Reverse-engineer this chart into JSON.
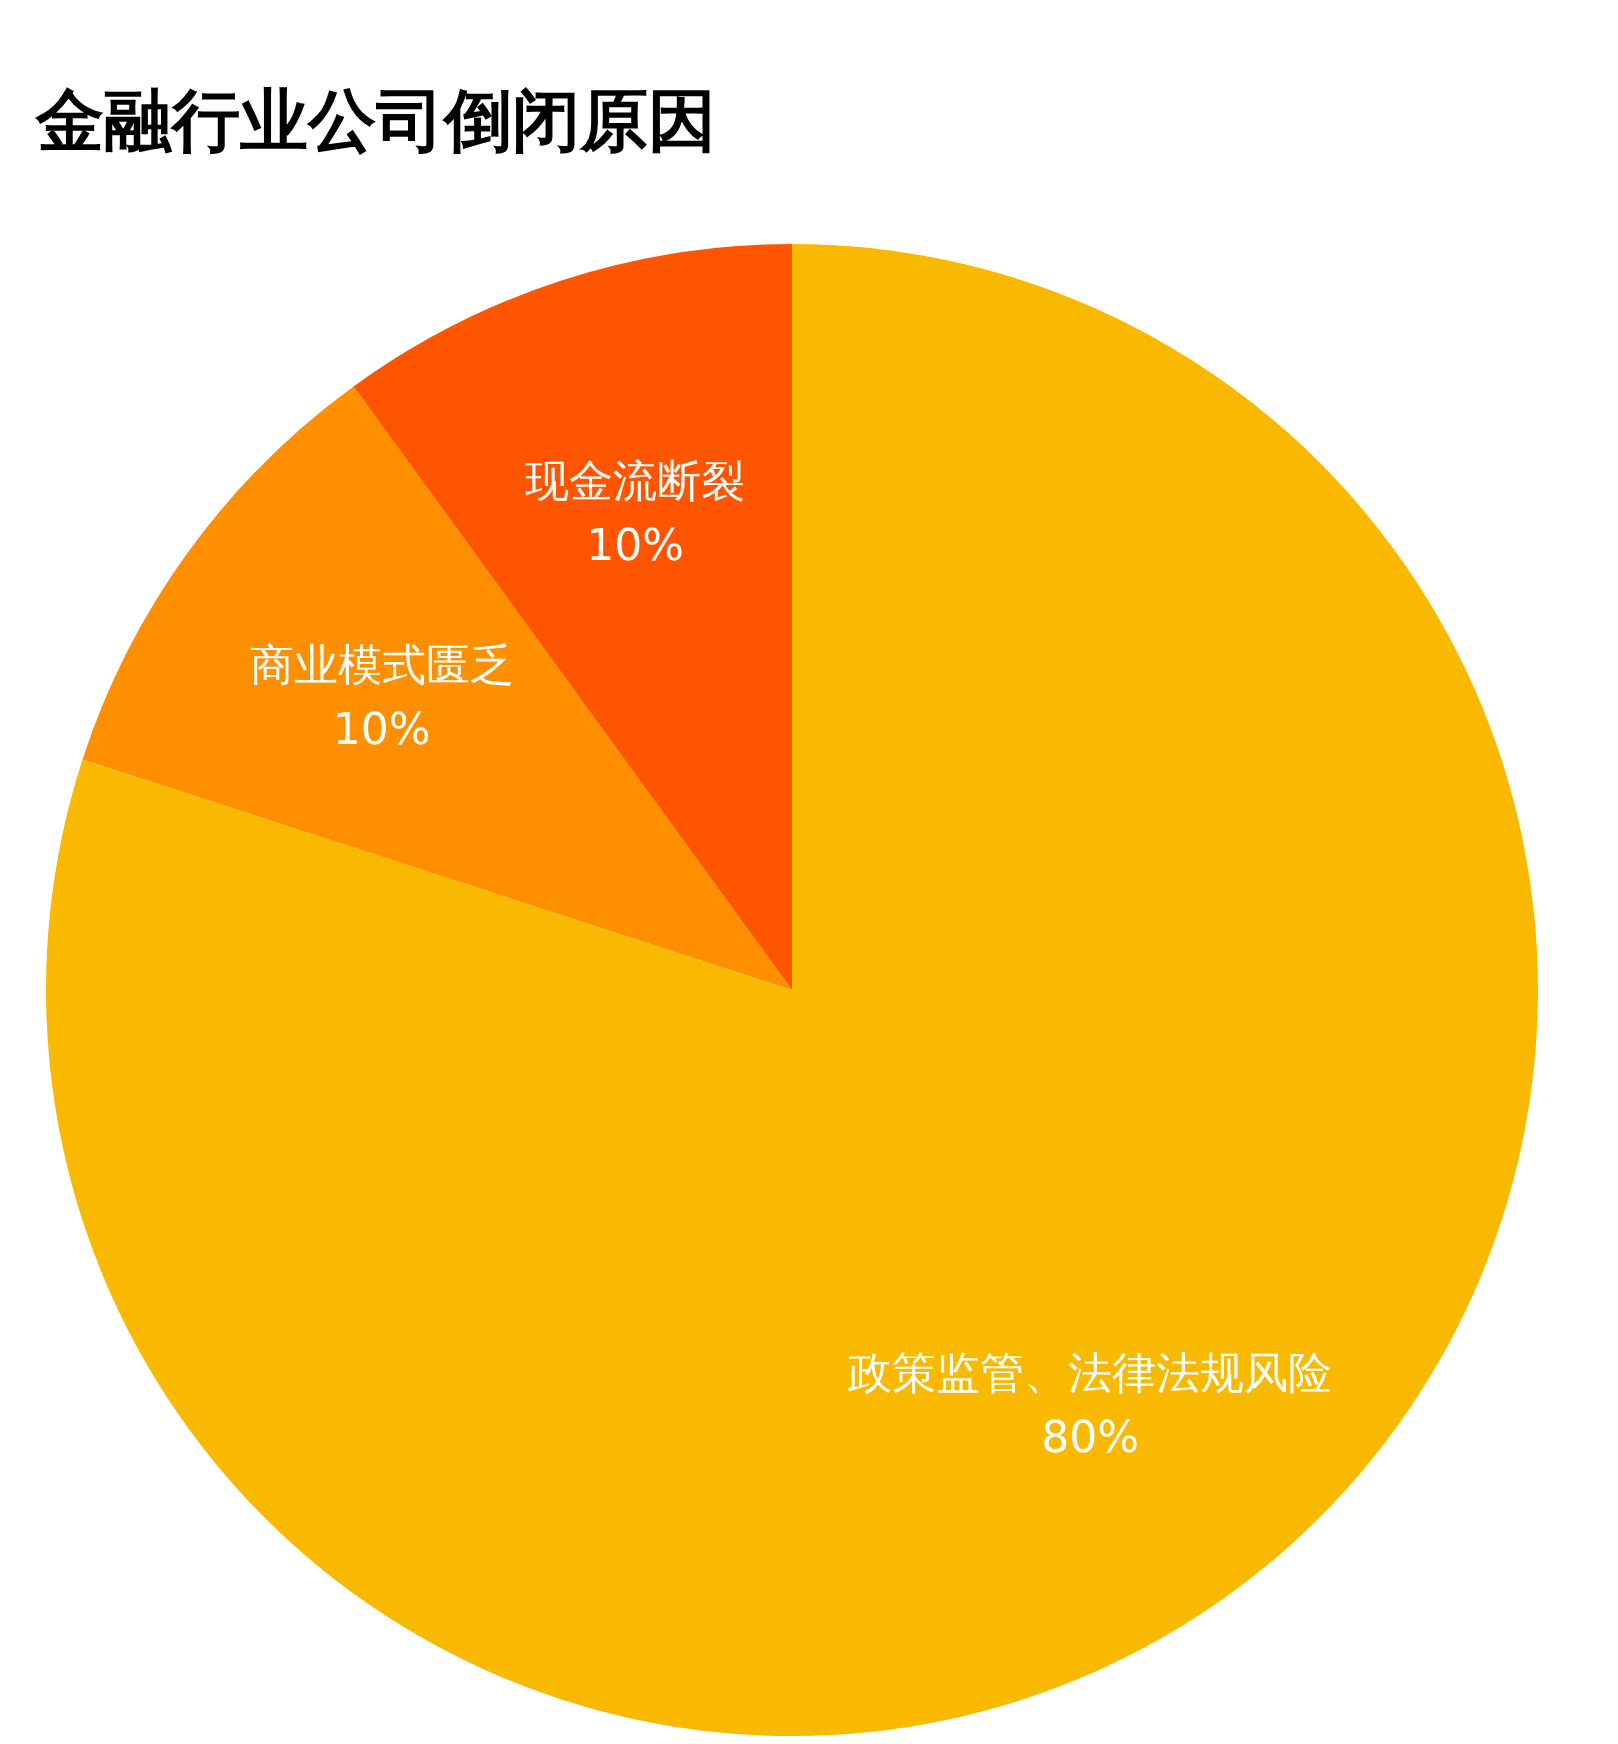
{
  "chart_data": {
    "type": "pie",
    "title": "金融行业公司倒闭原因",
    "categories": [
      "政策监管、法律法规风险",
      "商业模式匮乏",
      "现金流断裂"
    ],
    "values": [
      80,
      10,
      10
    ],
    "colors": [
      "#f8b900",
      "#fe9000",
      "#ff5500"
    ],
    "value_labels": [
      "80%",
      "10%",
      "10%"
    ],
    "legend": false
  }
}
